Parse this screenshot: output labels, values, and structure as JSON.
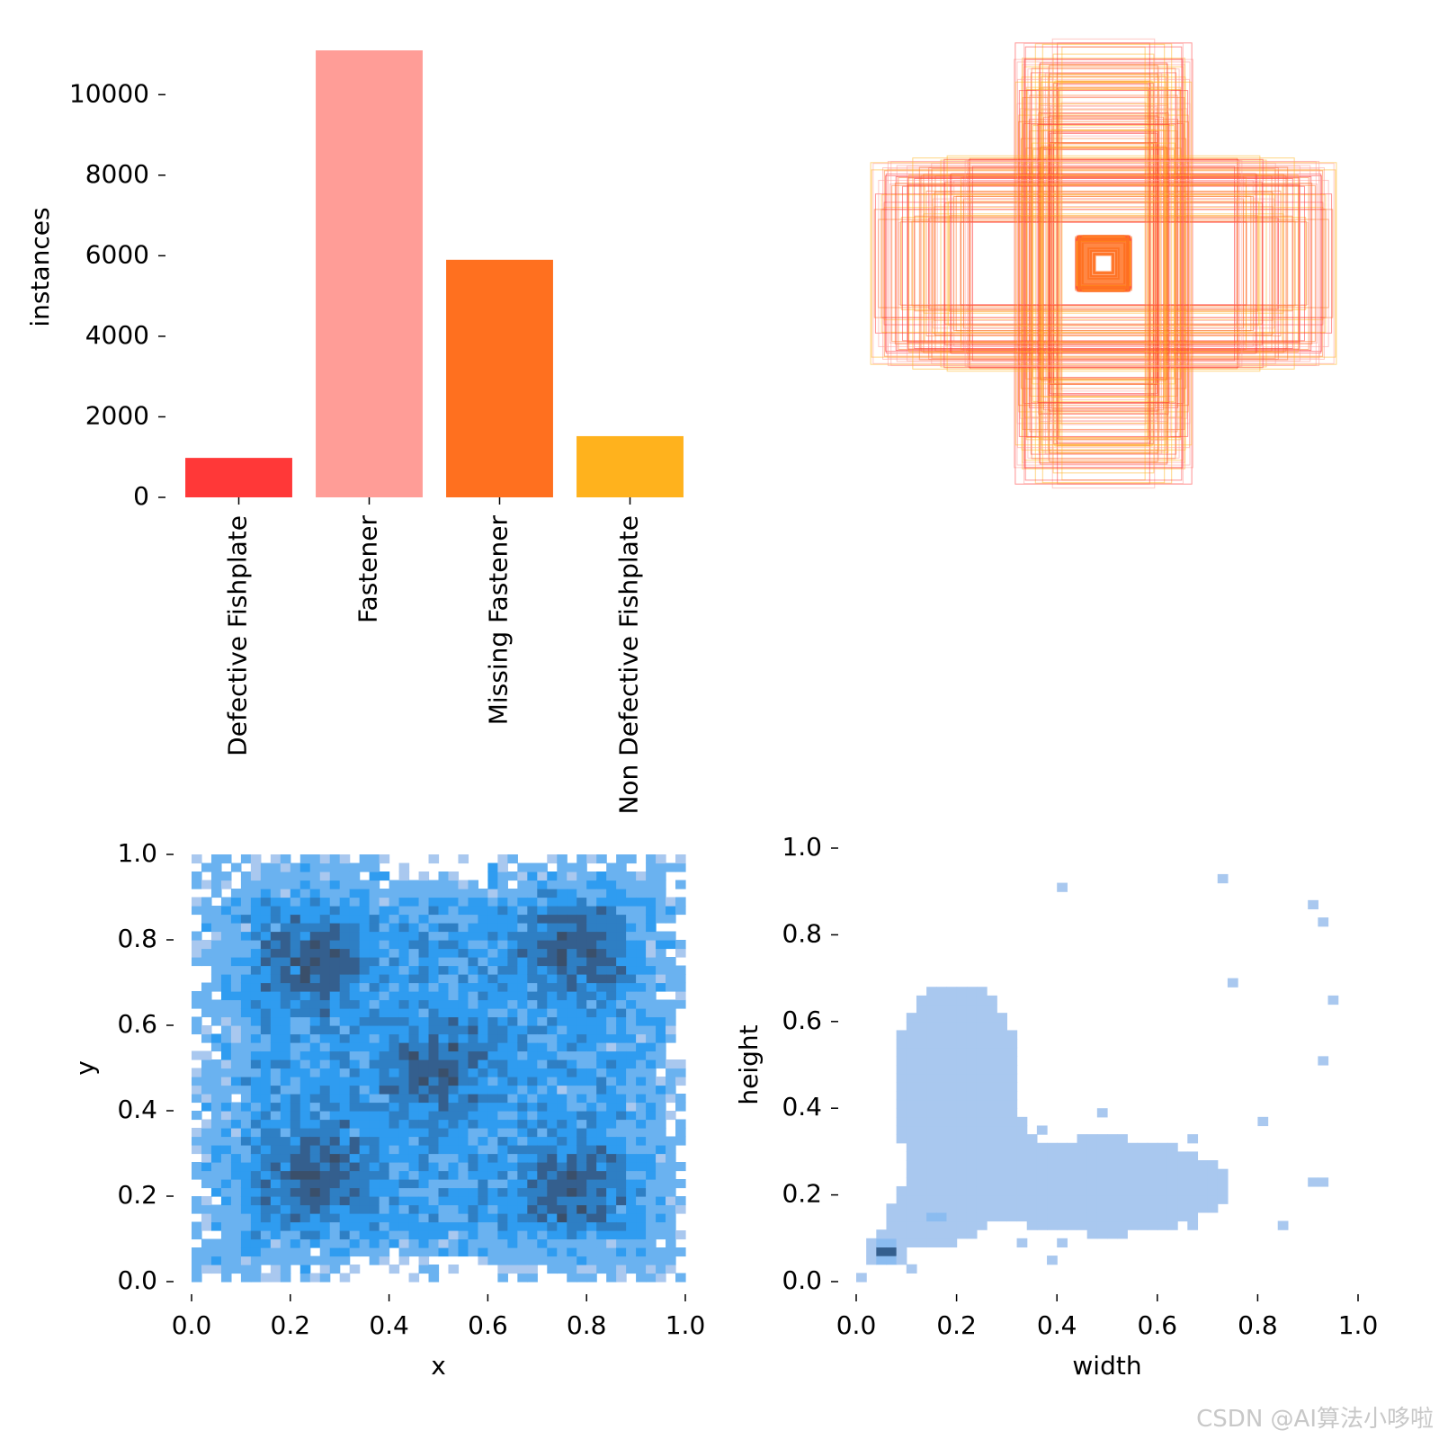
{
  "chart_data": [
    {
      "id": "class-counts",
      "type": "bar",
      "categories": [
        "Defective Fishplate",
        "Fastener",
        "Missing Fastener",
        "Non Defective Fishplate"
      ],
      "values": [
        980,
        11100,
        5900,
        1520
      ],
      "colors": [
        "#ff3838",
        "#ff9d97",
        "#ff701f",
        "#ffb21d"
      ],
      "ylabel": "instances",
      "xlabel": "",
      "ylim": [
        0,
        11100
      ],
      "yticks": [
        0,
        2000,
        4000,
        6000,
        8000,
        10000
      ]
    },
    {
      "id": "box-overlay",
      "type": "scatter",
      "description_free": true,
      "box_colors": [
        "#ff3838",
        "#ff9d97",
        "#ff701f",
        "#ffb21d"
      ]
    },
    {
      "id": "xy-heatmap",
      "type": "heatmap",
      "xlabel": "x",
      "ylabel": "y",
      "xlim": [
        0.0,
        1.0
      ],
      "ylim": [
        0.0,
        1.0
      ],
      "xticks": [
        "0.0",
        "0.2",
        "0.4",
        "0.6",
        "0.8",
        "1.0"
      ],
      "yticks": [
        "0.0",
        "0.2",
        "0.4",
        "0.6",
        "0.8",
        "1.0"
      ],
      "hot_spots": [
        [
          0.25,
          0.75
        ],
        [
          0.78,
          0.78
        ],
        [
          0.25,
          0.25
        ],
        [
          0.78,
          0.22
        ],
        [
          0.5,
          0.5
        ]
      ],
      "colors": [
        "#a9c8ef",
        "#6ab2f0",
        "#2f9cf0",
        "#2e7fc4",
        "#345f8e",
        "#3a4f6a"
      ]
    },
    {
      "id": "wh-heatmap",
      "type": "heatmap",
      "xlabel": "width",
      "ylabel": "height",
      "xlim": [
        0.0,
        1.0
      ],
      "ylim": [
        0.0,
        1.0
      ],
      "xticks": [
        "0.0",
        "0.2",
        "0.4",
        "0.6",
        "0.8",
        "1.0"
      ],
      "yticks": [
        "0.0",
        "0.2",
        "0.4",
        "0.6",
        "0.8",
        "1.0"
      ],
      "clusters": [
        {
          "center": [
            0.06,
            0.07
          ],
          "spread": [
            0.02,
            0.02
          ],
          "density": "high"
        },
        {
          "center": [
            0.15,
            0.15
          ],
          "spread": [
            0.05,
            0.04
          ],
          "density": "medium"
        },
        {
          "center": [
            0.2,
            0.45
          ],
          "spread": [
            0.08,
            0.15
          ],
          "density": "medium"
        },
        {
          "center": [
            0.5,
            0.22
          ],
          "spread": [
            0.15,
            0.07
          ],
          "density": "medium"
        }
      ],
      "colors": [
        "#a9c8ef",
        "#8bbcf0",
        "#2f9cf0",
        "#345f8e"
      ]
    }
  ],
  "watermark": "CSDN @AI算法小哆啦"
}
